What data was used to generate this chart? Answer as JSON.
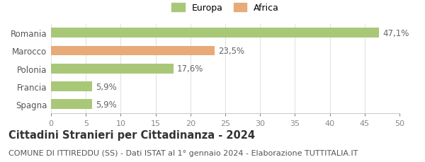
{
  "categories": [
    "Spagna",
    "Francia",
    "Polonia",
    "Marocco",
    "Romania"
  ],
  "values": [
    5.9,
    5.9,
    17.6,
    23.5,
    47.1
  ],
  "labels": [
    "5,9%",
    "5,9%",
    "17,6%",
    "23,5%",
    "47,1%"
  ],
  "bar_colors": [
    "#a8c878",
    "#a8c878",
    "#a8c878",
    "#e8aa78",
    "#a8c878"
  ],
  "legend_items": [
    {
      "label": "Europa",
      "color": "#a8c878"
    },
    {
      "label": "Africa",
      "color": "#e8aa78"
    }
  ],
  "xlim": [
    0,
    50
  ],
  "xticks": [
    0,
    5,
    10,
    15,
    20,
    25,
    30,
    35,
    40,
    45,
    50
  ],
  "title": "Cittadini Stranieri per Cittadinanza - 2024",
  "subtitle": "COMUNE DI ITTIREDDU (SS) - Dati ISTAT al 1° gennaio 2024 - Elaborazione TUTTITALIA.IT",
  "background_color": "#ffffff",
  "bar_height": 0.55,
  "label_fontsize": 8.5,
  "tick_fontsize": 8,
  "ytick_fontsize": 8.5,
  "title_fontsize": 10.5,
  "subtitle_fontsize": 8
}
